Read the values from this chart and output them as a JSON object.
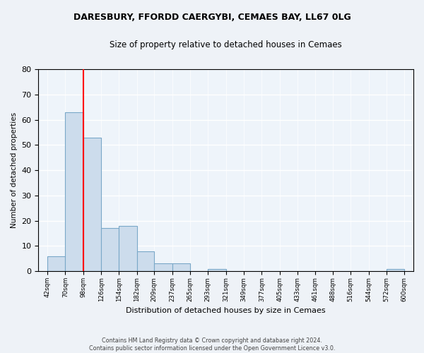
{
  "title1": "DARESBURY, FFORDD CAERGYBI, CEMAES BAY, LL67 0LG",
  "title2": "Size of property relative to detached houses in Cemaes",
  "xlabel": "Distribution of detached houses by size in Cemaes",
  "ylabel": "Number of detached properties",
  "bin_edges": [
    42,
    70,
    98,
    126,
    154,
    182,
    209,
    237,
    265,
    293,
    321,
    349,
    377,
    405,
    433,
    461,
    488,
    516,
    544,
    572,
    600
  ],
  "bin_labels": [
    "42sqm",
    "70sqm",
    "98sqm",
    "126sqm",
    "154sqm",
    "182sqm",
    "209sqm",
    "237sqm",
    "265sqm",
    "293sqm",
    "321sqm",
    "349sqm",
    "377sqm",
    "405sqm",
    "433sqm",
    "461sqm",
    "488sqm",
    "516sqm",
    "544sqm",
    "572sqm",
    "600sqm"
  ],
  "bar_heights": [
    6,
    63,
    53,
    17,
    18,
    8,
    3,
    3,
    0,
    1,
    0,
    0,
    0,
    0,
    0,
    0,
    0,
    0,
    0,
    1
  ],
  "bar_color": "#ccdcec",
  "bar_edge_color": "#7aa8c8",
  "vline_x": 98,
  "vline_color": "red",
  "annotation_box_color": "white",
  "annotation_box_edgecolor": "red",
  "ylim": [
    0,
    80
  ],
  "yticks": [
    0,
    10,
    20,
    30,
    40,
    50,
    60,
    70,
    80
  ],
  "footer": "Contains HM Land Registry data © Crown copyright and database right 2024.\nContains public sector information licensed under the Open Government Licence v3.0.",
  "bg_color": "#eef2f7",
  "plot_bg_color": "#eef4fa"
}
